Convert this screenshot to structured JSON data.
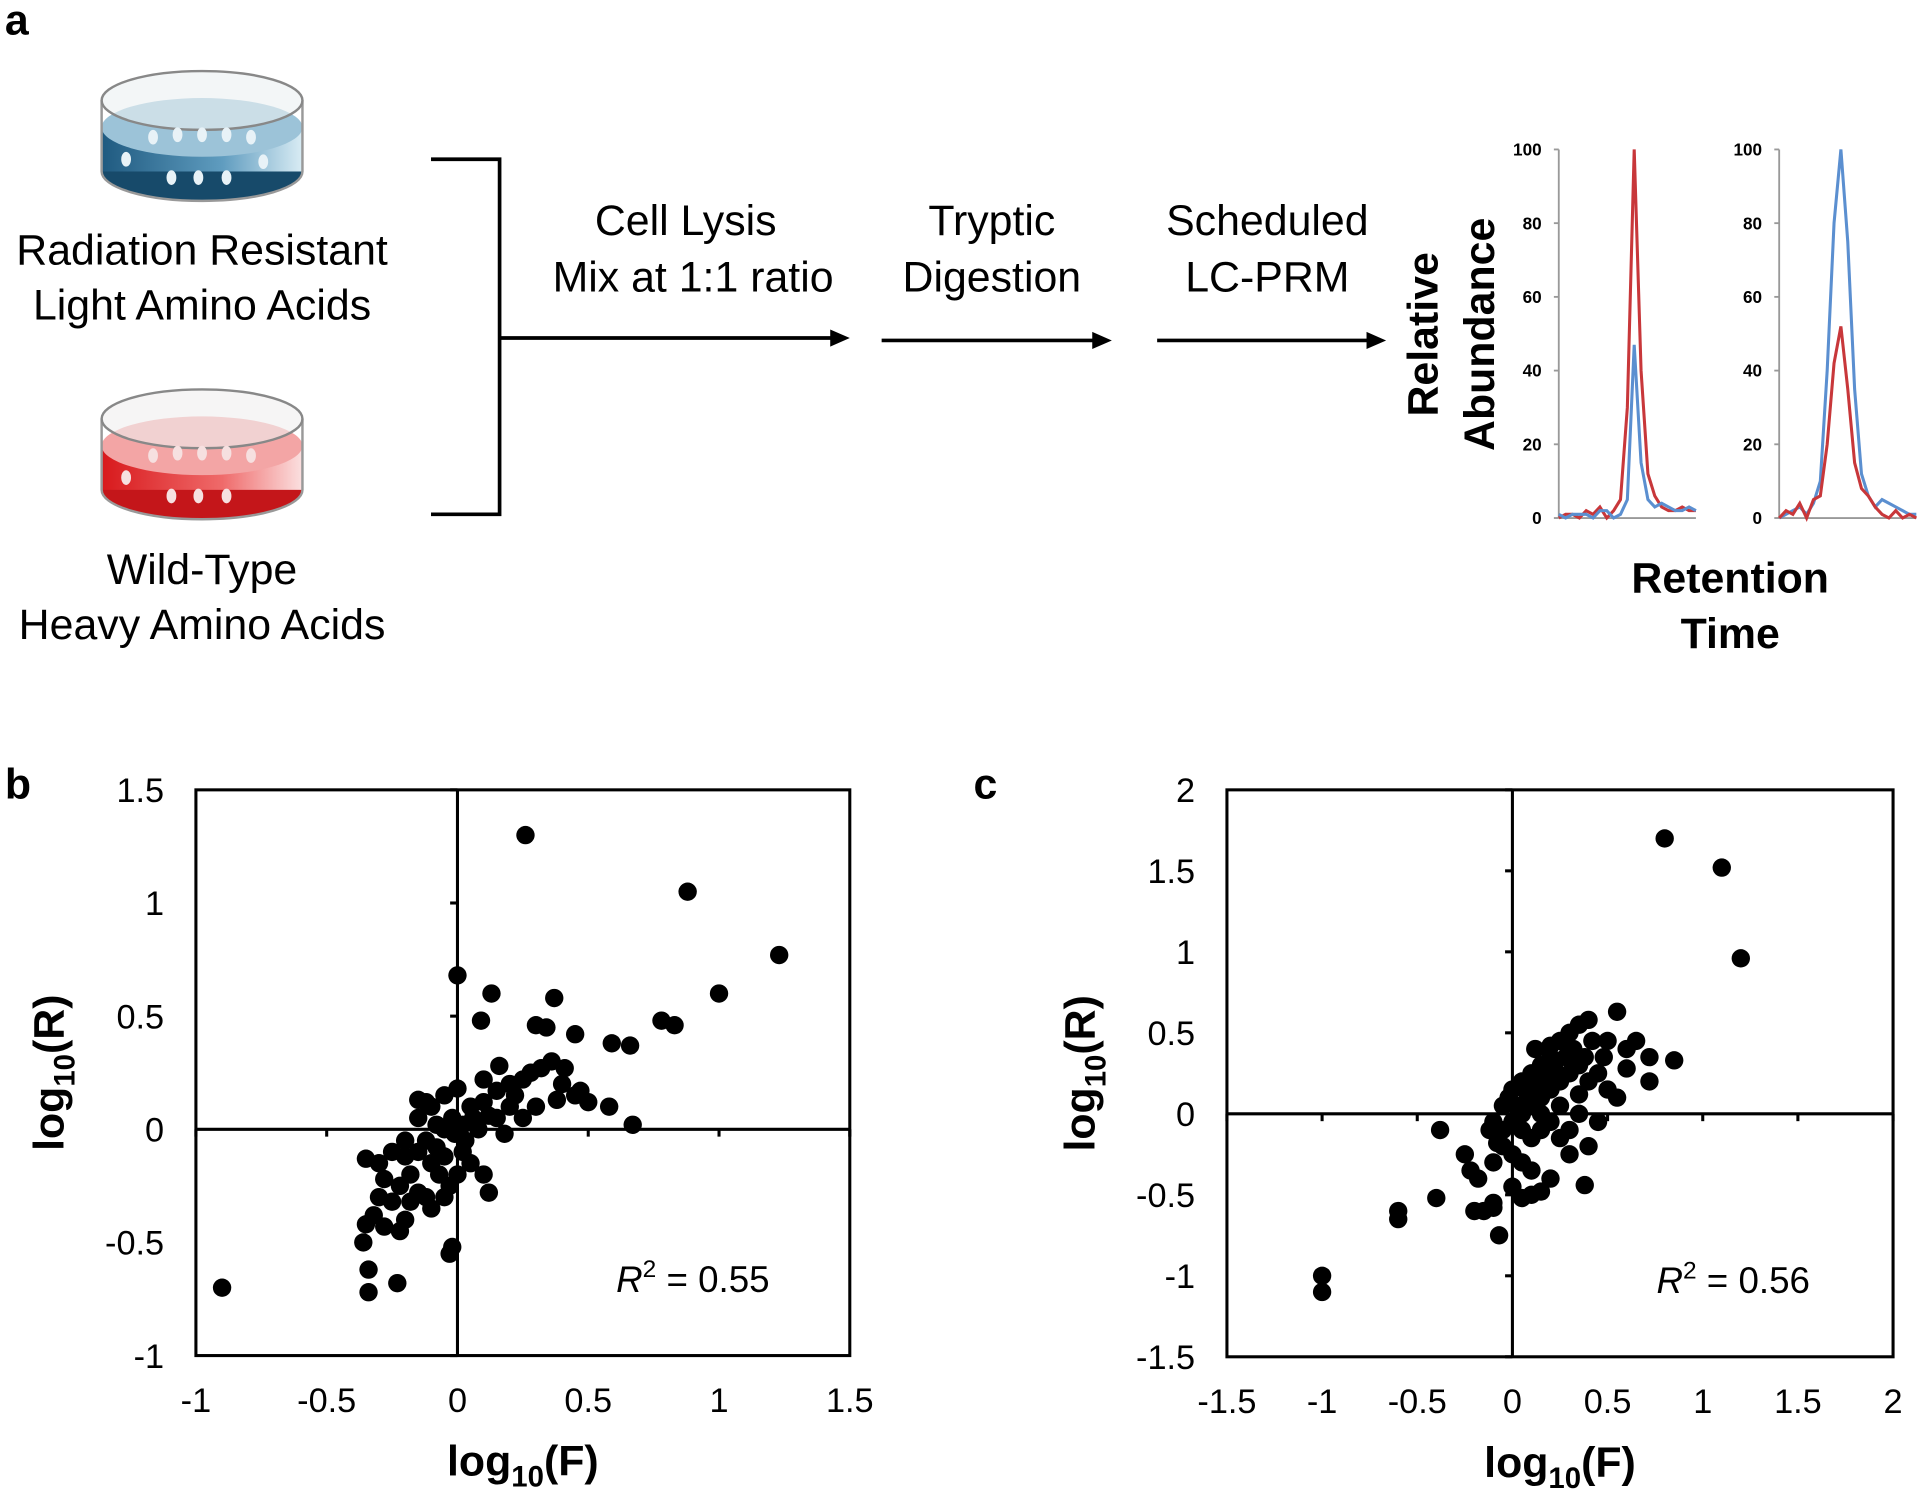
{
  "panel_labels": [
    "a",
    "b",
    "c"
  ],
  "panel_a": {
    "samples": [
      {
        "lines": [
          "Radiation Resistant",
          "Light Amino Acids"
        ]
      },
      {
        "lines": [
          "Wild-Type",
          "Heavy Amino Acids"
        ]
      }
    ],
    "steps": [
      {
        "lines": [
          "Cell Lysis",
          "Mix at 1:1 ratio"
        ]
      },
      {
        "lines": [
          "Tryptic",
          "Digestion"
        ]
      },
      {
        "lines": [
          "Scheduled",
          "LC-PRM"
        ]
      }
    ],
    "y_axis_label": [
      "Relative",
      "Abundance"
    ],
    "x_axis_label": [
      "Retention",
      "Time"
    ]
  },
  "chart_data": [
    {
      "type": "line",
      "x": [
        0,
        1,
        2,
        3,
        4,
        5,
        6,
        7,
        8,
        9,
        10,
        11,
        12,
        13,
        14,
        15,
        16,
        17,
        18,
        19,
        20
      ],
      "xlim": [
        0,
        20
      ],
      "ylim": [
        0,
        100
      ],
      "yticks": [
        0,
        20,
        40,
        60,
        80,
        100
      ],
      "series": [
        {
          "color": "#c8373a",
          "values": [
            0,
            1,
            1,
            0,
            2,
            1,
            3,
            0,
            2,
            5,
            30,
            100,
            40,
            12,
            6,
            3,
            2,
            2,
            3,
            2,
            2
          ]
        },
        {
          "color": "#5b8fd0",
          "values": [
            1,
            0,
            1,
            1,
            1,
            0,
            2,
            2,
            0,
            1,
            5,
            47,
            15,
            5,
            3,
            4,
            3,
            2,
            2,
            3,
            2
          ]
        }
      ]
    },
    {
      "type": "line",
      "x": [
        0,
        1,
        2,
        3,
        4,
        5,
        6,
        7,
        8,
        9,
        10,
        11,
        12,
        13,
        14,
        15,
        16,
        17,
        18,
        19,
        20
      ],
      "xlim": [
        0,
        20
      ],
      "ylim": [
        0,
        100
      ],
      "yticks": [
        0,
        20,
        40,
        60,
        80,
        100
      ],
      "series": [
        {
          "color": "#5b8fd0",
          "values": [
            0,
            1,
            2,
            3,
            1,
            4,
            10,
            40,
            80,
            100,
            75,
            35,
            12,
            6,
            3,
            5,
            4,
            3,
            2,
            1,
            1
          ]
        },
        {
          "color": "#c8373a",
          "values": [
            0,
            2,
            1,
            4,
            0,
            5,
            6,
            20,
            42,
            52,
            35,
            15,
            8,
            6,
            3,
            1,
            0,
            2,
            0,
            1,
            0
          ]
        }
      ]
    },
    {
      "type": "scatter",
      "xlim": [
        -1,
        1.5
      ],
      "ylim": [
        -1,
        1.5
      ],
      "xticks": [
        -1,
        -0.5,
        0,
        0.5,
        1,
        1.5
      ],
      "yticks": [
        -1,
        -0.5,
        0,
        0.5,
        1,
        1.5
      ],
      "color": "#000000",
      "xlabel": {
        "base": "log",
        "sub": "10",
        "arg": "(F)"
      },
      "ylabel": {
        "base": "log",
        "sub": "10",
        "arg": "(R)"
      },
      "annotation": {
        "symbol": "R",
        "exponent": "2",
        "text": " = 0.55"
      },
      "x": [
        -0.9,
        0.26,
        0.88,
        1.23,
        1.0,
        0.78,
        0.83,
        0.66,
        0.59,
        0.67,
        0.45,
        0.37,
        0.3,
        0.34,
        0.13,
        0.0,
        0.09,
        0.58,
        0.5,
        0.45,
        0.38,
        0.4,
        0.47,
        0.36,
        0.41,
        0.32,
        0.28,
        0.25,
        0.2,
        0.15,
        0.1,
        0.05,
        0.0,
        0.12,
        0.1,
        0.2,
        0.15,
        0.08,
        0.02,
        -0.02,
        -0.05,
        -0.1,
        -0.15,
        -0.12,
        -0.08,
        -0.05,
        0.02,
        0.05,
        0.1,
        0.12,
        0.0,
        -0.03,
        -0.07,
        -0.1,
        -0.15,
        -0.2,
        -0.25,
        -0.18,
        -0.22,
        -0.15,
        -0.12,
        -0.3,
        -0.35,
        -0.28,
        -0.25,
        -0.2,
        -0.18,
        -0.1,
        -0.05,
        -0.3,
        -0.32,
        -0.35,
        -0.36,
        -0.28,
        -0.22,
        -0.34,
        -0.34,
        -0.23,
        -0.03,
        -0.02,
        -0.15,
        -0.12,
        -0.05,
        0.06,
        -0.01,
        0.03,
        0.18,
        0.25,
        0.3,
        0.22,
        -0.08,
        -0.2,
        0.16
      ],
      "values": [
        -0.7,
        1.3,
        1.05,
        0.77,
        0.6,
        0.48,
        0.46,
        0.37,
        0.38,
        0.02,
        0.42,
        0.58,
        0.46,
        0.45,
        0.6,
        0.68,
        0.48,
        0.1,
        0.12,
        0.15,
        0.13,
        0.2,
        0.17,
        0.3,
        0.27,
        0.27,
        0.25,
        0.22,
        0.2,
        0.17,
        0.22,
        0.1,
        0.18,
        0.06,
        0.12,
        0.1,
        0.05,
        0.0,
        0.02,
        0.05,
        0.0,
        0.1,
        0.05,
        -0.05,
        -0.08,
        -0.12,
        -0.1,
        -0.15,
        -0.2,
        -0.28,
        -0.2,
        -0.25,
        -0.2,
        -0.15,
        -0.1,
        -0.12,
        -0.1,
        -0.2,
        -0.25,
        -0.28,
        -0.3,
        -0.15,
        -0.13,
        -0.22,
        -0.32,
        -0.4,
        -0.32,
        -0.35,
        -0.3,
        -0.3,
        -0.38,
        -0.42,
        -0.5,
        -0.43,
        -0.45,
        -0.62,
        -0.72,
        -0.68,
        -0.55,
        -0.52,
        0.13,
        0.12,
        0.15,
        0.05,
        -0.02,
        -0.05,
        -0.02,
        0.05,
        0.1,
        0.15,
        0.02,
        -0.05,
        0.28
      ]
    },
    {
      "type": "scatter",
      "xlim": [
        -1.5,
        2
      ],
      "ylim": [
        -1.5,
        2
      ],
      "xticks": [
        -1.5,
        -1,
        -0.5,
        0,
        0.5,
        1,
        1.5,
        2
      ],
      "yticks": [
        -1.5,
        -1,
        -0.5,
        0,
        0.5,
        1,
        1.5,
        2
      ],
      "color": "#000000",
      "xlabel": {
        "base": "log",
        "sub": "10",
        "arg": "(F)"
      },
      "ylabel": {
        "base": "log",
        "sub": "10",
        "arg": "(R)"
      },
      "annotation": {
        "symbol": "R",
        "exponent": "2",
        "text": " = 0.56"
      },
      "x": [
        -1.0,
        -1.0,
        0.8,
        1.1,
        1.2,
        -0.6,
        -0.6,
        -0.4,
        -0.38,
        -0.25,
        -0.22,
        -0.18,
        -0.1,
        -0.15,
        -0.1,
        -0.2,
        -0.1,
        -0.07,
        0.0,
        0.05,
        0.1,
        0.15,
        0.2,
        0.38,
        0.6,
        0.72,
        0.85,
        0.72,
        0.55,
        0.4,
        0.35,
        0.5,
        0.6,
        0.65,
        0.3,
        0.25,
        0.2,
        0.15,
        0.1,
        0.05,
        0.0,
        -0.05,
        0.1,
        0.15,
        0.2,
        0.25,
        0.3,
        0.35,
        0.4,
        0.45,
        0.5,
        0.55,
        0.45,
        0.35,
        0.3,
        0.25,
        0.2,
        0.15,
        0.1,
        0.05,
        0.0,
        -0.05,
        -0.1,
        0.02,
        0.08,
        0.12,
        0.18,
        0.22,
        0.28,
        0.32,
        0.38,
        0.42,
        0.48,
        -0.05,
        0.0,
        0.05,
        0.1,
        0.3,
        0.4,
        -0.12,
        -0.08,
        0.15,
        0.25,
        0.35,
        0.05,
        -0.02,
        0.2,
        0.12
      ],
      "values": [
        -1.0,
        -1.1,
        1.7,
        1.52,
        0.96,
        -0.6,
        -0.65,
        -0.52,
        -0.1,
        -0.25,
        -0.35,
        -0.4,
        -0.3,
        -0.6,
        -0.58,
        -0.6,
        -0.55,
        -0.75,
        -0.45,
        -0.52,
        -0.5,
        -0.48,
        -0.4,
        -0.44,
        0.28,
        0.35,
        0.33,
        0.2,
        0.63,
        0.58,
        0.55,
        0.45,
        0.4,
        0.45,
        0.5,
        0.45,
        0.35,
        0.3,
        0.25,
        0.2,
        0.15,
        0.05,
        0.05,
        0.1,
        0.15,
        0.2,
        0.25,
        0.3,
        0.2,
        0.25,
        0.15,
        0.1,
        -0.05,
        0.0,
        -0.1,
        -0.15,
        -0.05,
        -0.1,
        -0.15,
        -0.1,
        -0.05,
        -0.1,
        -0.05,
        0.05,
        0.12,
        0.18,
        0.22,
        0.28,
        0.35,
        0.4,
        0.35,
        0.45,
        0.35,
        -0.2,
        -0.25,
        -0.3,
        -0.35,
        -0.25,
        -0.2,
        -0.1,
        -0.18,
        0.0,
        0.05,
        0.12,
        0.0,
        0.1,
        0.42,
        0.4
      ]
    }
  ]
}
